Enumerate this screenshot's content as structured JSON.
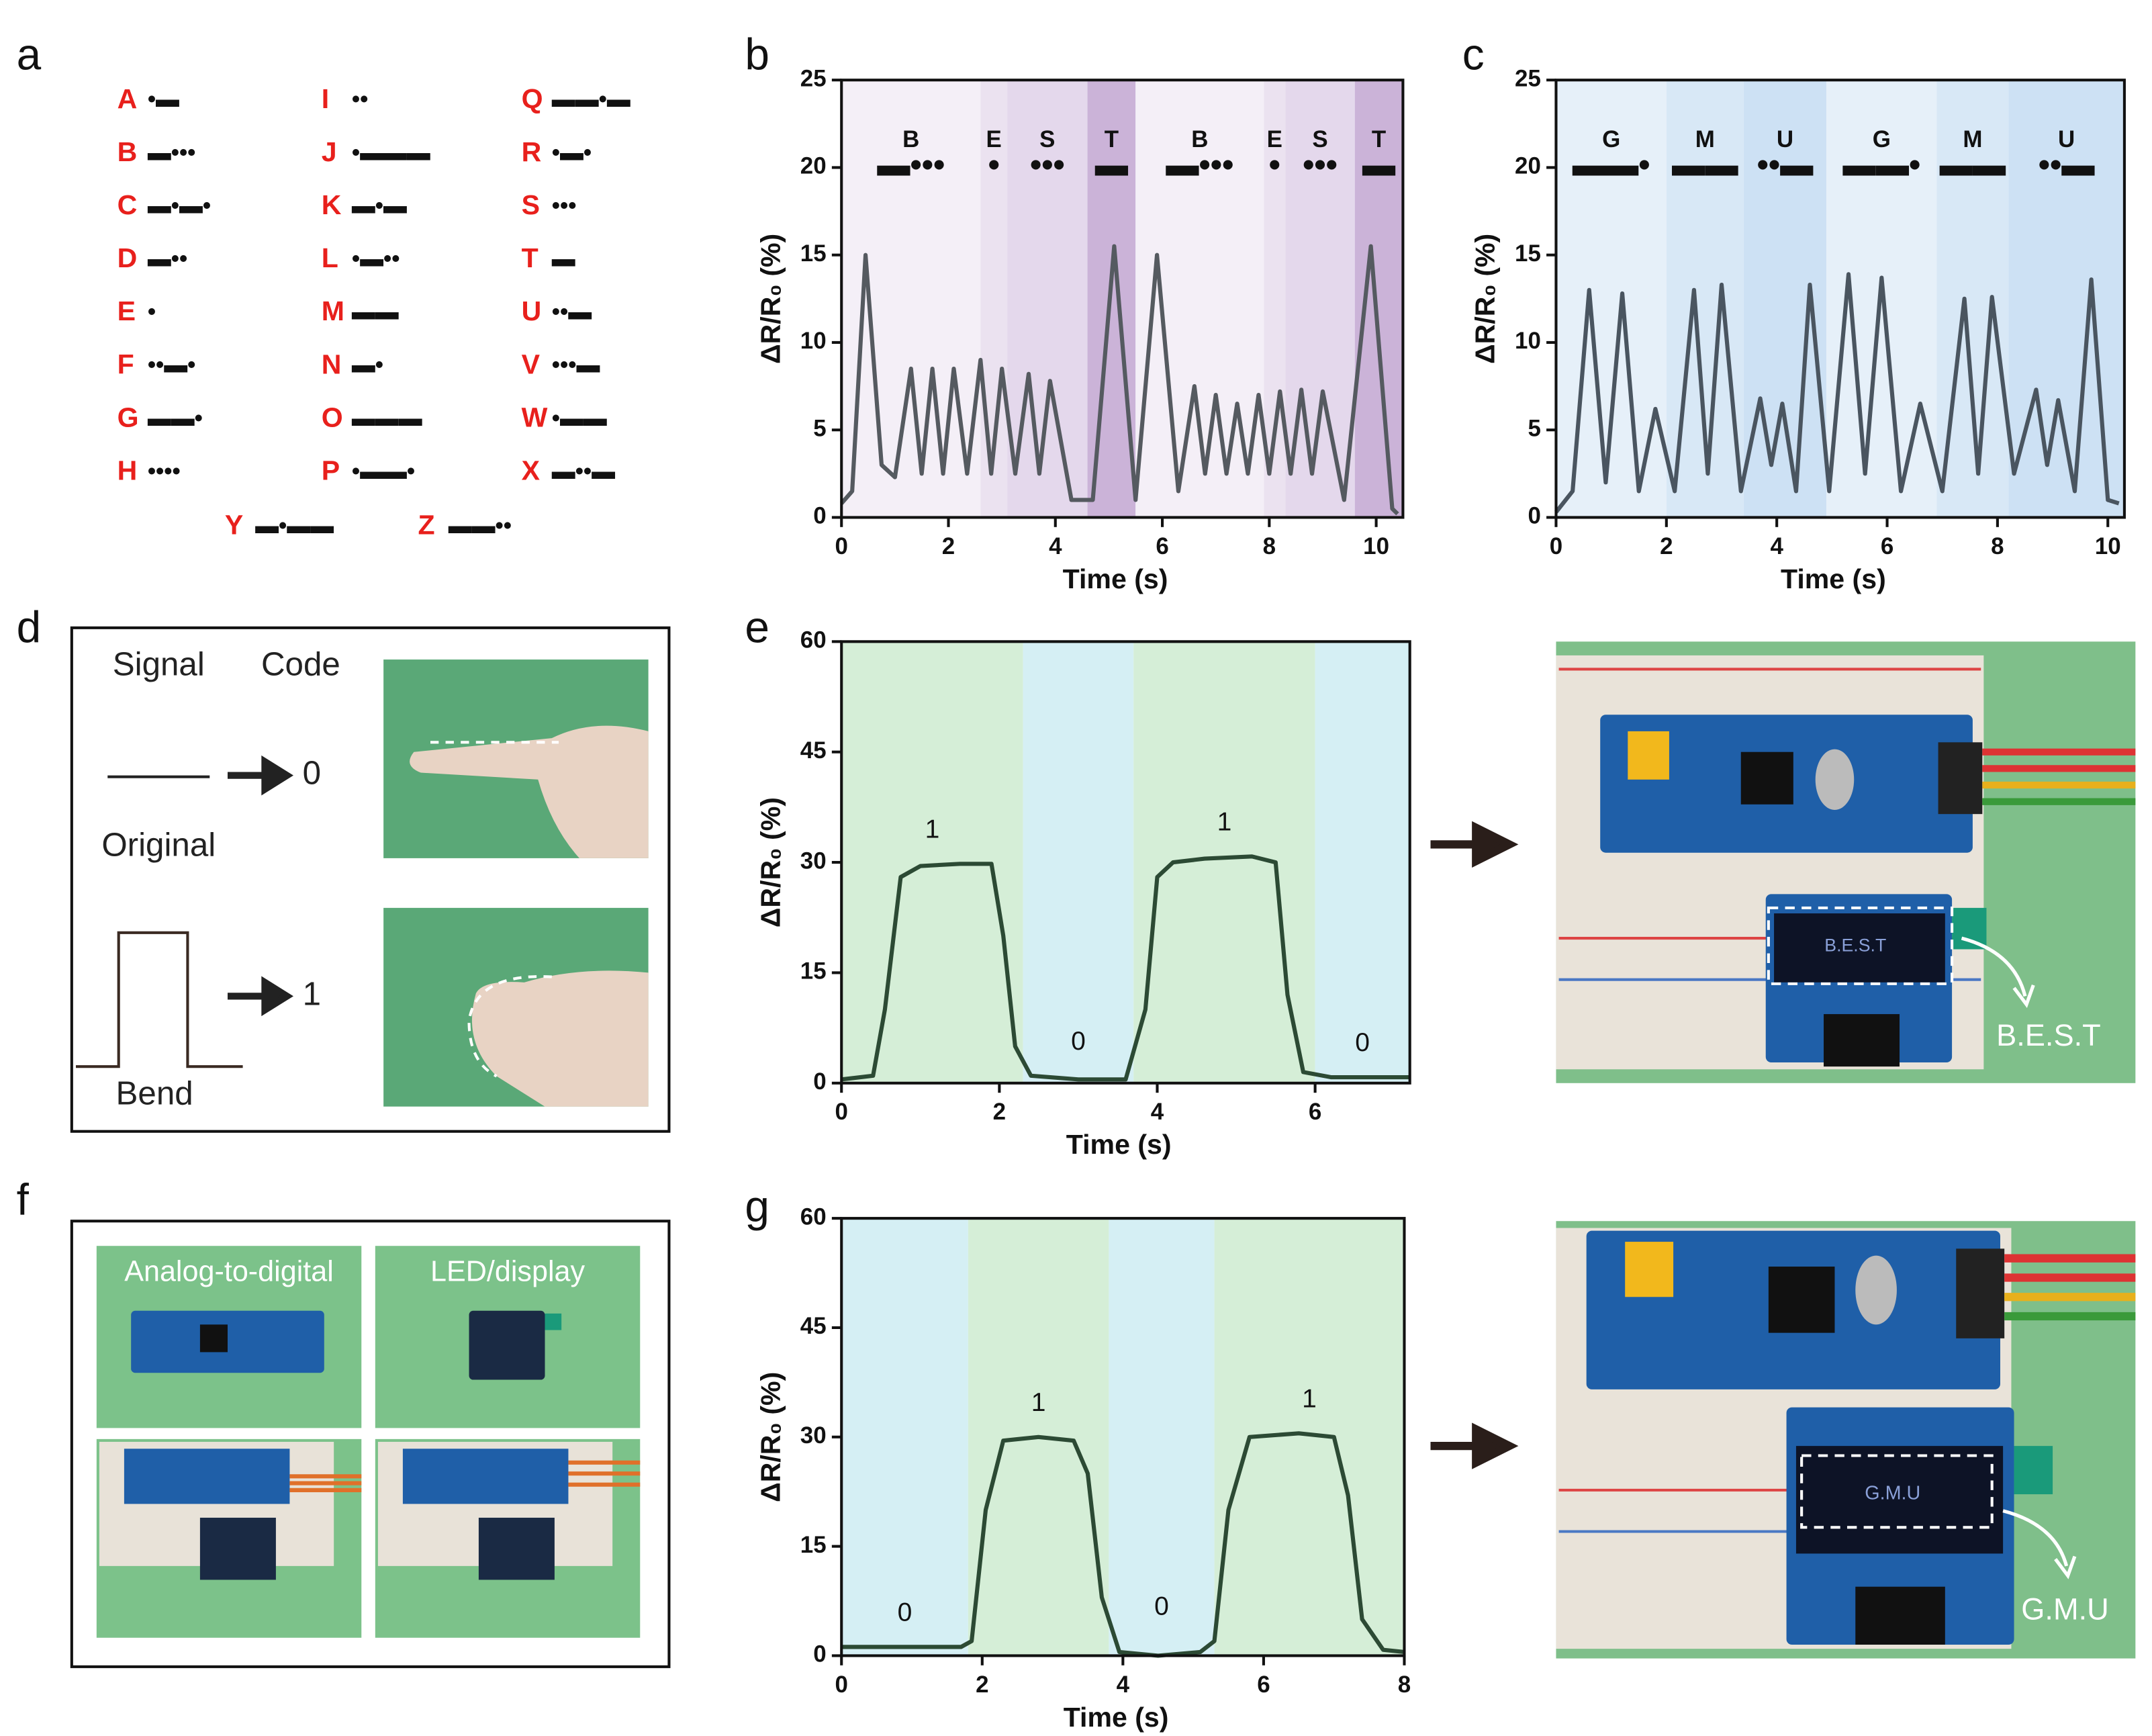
{
  "panel_labels": [
    "a",
    "b",
    "c",
    "d",
    "e",
    "f",
    "g"
  ],
  "morse_table": {
    "entries": [
      {
        "letter": "A",
        "code": "•▬"
      },
      {
        "letter": "B",
        "code": "▬•••"
      },
      {
        "letter": "C",
        "code": "▬•▬•"
      },
      {
        "letter": "D",
        "code": "▬••"
      },
      {
        "letter": "E",
        "code": "•"
      },
      {
        "letter": "F",
        "code": "••▬•"
      },
      {
        "letter": "G",
        "code": "▬▬•"
      },
      {
        "letter": "H",
        "code": "••••"
      },
      {
        "letter": "I",
        "code": "••"
      },
      {
        "letter": "J",
        "code": "•▬▬▬"
      },
      {
        "letter": "K",
        "code": "▬•▬"
      },
      {
        "letter": "L",
        "code": "•▬••"
      },
      {
        "letter": "M",
        "code": "▬▬"
      },
      {
        "letter": "N",
        "code": "▬•"
      },
      {
        "letter": "O",
        "code": "▬▬▬"
      },
      {
        "letter": "P",
        "code": "•▬▬•"
      },
      {
        "letter": "Q",
        "code": "▬▬•▬"
      },
      {
        "letter": "R",
        "code": "•▬•"
      },
      {
        "letter": "S",
        "code": "•••"
      },
      {
        "letter": "T",
        "code": "▬"
      },
      {
        "letter": "U",
        "code": "••▬"
      },
      {
        "letter": "V",
        "code": "•••▬"
      },
      {
        "letter": "W",
        "code": "•▬▬"
      },
      {
        "letter": "X",
        "code": "▬••▬"
      },
      {
        "letter": "Y",
        "code": "▬•▬▬"
      },
      {
        "letter": "Z",
        "code": "▬▬••"
      }
    ]
  },
  "chart_data": [
    {
      "type": "line",
      "xlabel": "Time (s)",
      "ylabel": "ΔR/R₀ (%)",
      "xlim": [
        0,
        10.5
      ],
      "ylim": [
        0,
        25
      ],
      "xticks": [
        0,
        2,
        4,
        6,
        8,
        10
      ],
      "yticks": [
        0,
        5,
        10,
        15,
        20,
        25
      ],
      "color": "#555a60",
      "bands": [
        {
          "from": 0,
          "to": 2.6,
          "color": "#f4eff7",
          "label": "B",
          "code": "▬•••"
        },
        {
          "from": 2.6,
          "to": 3.1,
          "color": "#ebe2f0",
          "label": "E",
          "code": "•"
        },
        {
          "from": 3.1,
          "to": 4.6,
          "color": "#e4d8ec",
          "label": "S",
          "code": "•••"
        },
        {
          "from": 4.6,
          "to": 5.5,
          "color": "#cbb3d8",
          "label": "T",
          "code": "▬"
        },
        {
          "from": 5.5,
          "to": 7.9,
          "color": "#f4eff7",
          "label": "B",
          "code": "▬•••"
        },
        {
          "from": 7.9,
          "to": 8.3,
          "color": "#ebe2f0",
          "label": "E",
          "code": "•"
        },
        {
          "from": 8.3,
          "to": 9.6,
          "color": "#e4d8ec",
          "label": "S",
          "code": "•••"
        },
        {
          "from": 9.6,
          "to": 10.5,
          "color": "#cbb3d8",
          "label": "T",
          "code": "▬"
        }
      ],
      "x": [
        0,
        0.2,
        0.45,
        0.75,
        1.0,
        1.3,
        1.5,
        1.7,
        1.9,
        2.1,
        2.35,
        2.6,
        2.8,
        3.0,
        3.25,
        3.5,
        3.7,
        3.9,
        4.3,
        4.7,
        5.1,
        5.5,
        5.9,
        6.3,
        6.6,
        6.8,
        7.0,
        7.2,
        7.4,
        7.6,
        7.8,
        8.0,
        8.2,
        8.4,
        8.6,
        8.8,
        9.0,
        9.4,
        9.9,
        10.3,
        10.4
      ],
      "values": [
        0.8,
        1.5,
        15,
        3,
        2.3,
        8.5,
        2.5,
        8.5,
        2.5,
        8.5,
        2.5,
        9,
        2.5,
        8.5,
        2.5,
        8.2,
        2.5,
        7.8,
        1,
        1,
        15.5,
        1,
        15,
        1.5,
        7.5,
        2.5,
        7,
        2.5,
        6.5,
        2.5,
        7,
        2.5,
        7.2,
        2.5,
        7.3,
        2.5,
        7.2,
        1,
        15.5,
        0.5,
        0.2
      ]
    },
    {
      "type": "line",
      "xlabel": "Time (s)",
      "ylabel": "ΔR/R₀ (%)",
      "xlim": [
        0,
        10.3
      ],
      "ylim": [
        0,
        25
      ],
      "xticks": [
        0,
        2,
        4,
        6,
        8,
        10
      ],
      "yticks": [
        0,
        5,
        10,
        15,
        20,
        25
      ],
      "color": "#4a5560",
      "bands": [
        {
          "from": 0,
          "to": 2.0,
          "color": "#e6f0f9",
          "label": "G",
          "code": "▬▬•"
        },
        {
          "from": 2.0,
          "to": 3.4,
          "color": "#d8e8f6",
          "label": "M",
          "code": "▬▬"
        },
        {
          "from": 3.4,
          "to": 4.9,
          "color": "#cde1f4",
          "label": "U",
          "code": "••▬"
        },
        {
          "from": 4.9,
          "to": 6.9,
          "color": "#e6f0f9",
          "label": "G",
          "code": "▬▬•"
        },
        {
          "from": 6.9,
          "to": 8.2,
          "color": "#d8e8f6",
          "label": "M",
          "code": "▬▬"
        },
        {
          "from": 8.2,
          "to": 10.3,
          "color": "#cde1f4",
          "label": "U",
          "code": "••▬"
        }
      ],
      "x": [
        0,
        0.3,
        0.6,
        0.9,
        1.2,
        1.5,
        1.8,
        2.15,
        2.5,
        2.75,
        3.0,
        3.35,
        3.7,
        3.9,
        4.1,
        4.35,
        4.6,
        4.95,
        5.3,
        5.6,
        5.9,
        6.25,
        6.6,
        7.0,
        7.4,
        7.65,
        7.9,
        8.3,
        8.7,
        8.9,
        9.1,
        9.4,
        9.7,
        10.0,
        10.2
      ],
      "values": [
        0.3,
        1.5,
        13,
        2,
        12.8,
        1.5,
        6.2,
        1.5,
        13,
        2.5,
        13.3,
        1.5,
        6.8,
        3,
        6.5,
        1.5,
        13.3,
        1.5,
        13.9,
        2.5,
        13.7,
        1.5,
        6.5,
        1.5,
        12.5,
        2.5,
        12.6,
        2.5,
        7.3,
        3,
        6.7,
        1.5,
        13.6,
        1,
        0.8
      ]
    },
    {
      "type": "line",
      "xlabel": "Time (s)",
      "ylabel": "ΔR/R₀ (%)",
      "xlim": [
        0,
        7.2
      ],
      "ylim": [
        0,
        60
      ],
      "xticks": [
        0,
        2,
        4,
        6
      ],
      "yticks": [
        0,
        15,
        30,
        45,
        60
      ],
      "color": "#2c4a34",
      "bands": [
        {
          "from": 0,
          "to": 2.3,
          "color": "#d5eed7",
          "label": "1"
        },
        {
          "from": 2.3,
          "to": 3.7,
          "color": "#d5eff4",
          "label": "0"
        },
        {
          "from": 3.7,
          "to": 6.0,
          "color": "#d5eed7",
          "label": "1"
        },
        {
          "from": 6.0,
          "to": 7.2,
          "color": "#d5eff4",
          "label": "0"
        }
      ],
      "x": [
        0,
        0.4,
        0.55,
        0.75,
        1.0,
        1.5,
        1.9,
        2.05,
        2.2,
        2.4,
        3.0,
        3.6,
        3.85,
        4.0,
        4.2,
        4.6,
        5.2,
        5.5,
        5.65,
        5.85,
        6.2,
        7.2
      ],
      "values": [
        0.5,
        1,
        10,
        28,
        29.5,
        29.8,
        29.8,
        20,
        5,
        1,
        0.5,
        0.5,
        10,
        28,
        30,
        30.5,
        30.8,
        30,
        12,
        1.5,
        0.8,
        0.8
      ]
    },
    {
      "type": "line",
      "xlabel": "Time (s)",
      "ylabel": "ΔR/R₀ (%)",
      "xlim": [
        0,
        8
      ],
      "ylim": [
        0,
        60
      ],
      "xticks": [
        0,
        2,
        4,
        6,
        8
      ],
      "yticks": [
        0,
        15,
        30,
        45,
        60
      ],
      "color": "#2c4a34",
      "bands": [
        {
          "from": 0,
          "to": 1.8,
          "color": "#d5eff4",
          "label": "0"
        },
        {
          "from": 1.8,
          "to": 3.8,
          "color": "#d5eed7",
          "label": "1"
        },
        {
          "from": 3.8,
          "to": 5.3,
          "color": "#d5eff4",
          "label": "0"
        },
        {
          "from": 5.3,
          "to": 8,
          "color": "#d5eed7",
          "label": "1"
        }
      ],
      "x": [
        0,
        1.7,
        1.85,
        2.05,
        2.3,
        2.8,
        3.3,
        3.5,
        3.7,
        3.95,
        4.5,
        5.1,
        5.3,
        5.5,
        5.8,
        6.5,
        7.0,
        7.2,
        7.4,
        7.7,
        8.0
      ],
      "values": [
        1.2,
        1.2,
        2,
        20,
        29.5,
        30,
        29.5,
        25,
        8,
        0.5,
        0,
        0.5,
        2,
        20,
        30,
        30.5,
        30,
        22,
        5,
        0.8,
        0.5
      ]
    }
  ],
  "code_diagram": {
    "headers": [
      "Signal",
      "Code"
    ],
    "states": [
      {
        "name": "Original",
        "code": "0"
      },
      {
        "name": "Bend",
        "code": "1"
      }
    ]
  },
  "hardware_photos": {
    "labels": [
      "Analog-to-digital",
      "LED/display"
    ]
  },
  "displays": [
    {
      "screen": "B.E.S.T",
      "output": "B.E.S.T"
    },
    {
      "screen": "G.M.U",
      "output": "G.M.U"
    }
  ]
}
